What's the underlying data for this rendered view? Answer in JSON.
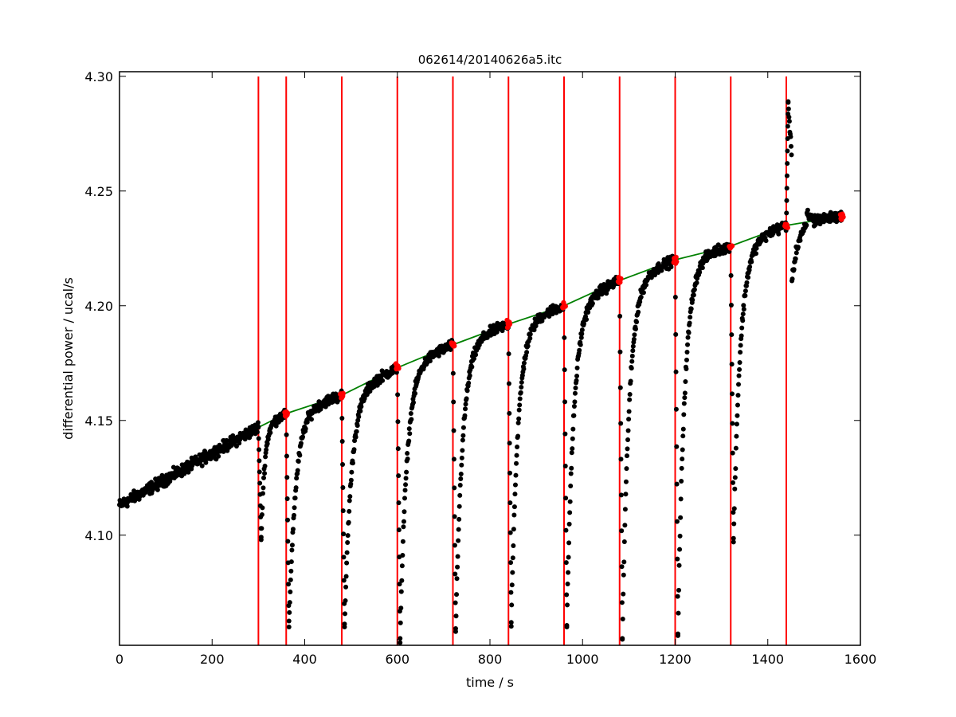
{
  "chart_data": {
    "type": "scatter",
    "title": "062614/20140626a5.itc",
    "xlabel": "time / s",
    "ylabel": "differential power / ucal/s",
    "xlim": [
      0,
      1600
    ],
    "ylim": [
      4.052,
      4.302
    ],
    "x_ticks": [
      0,
      200,
      400,
      600,
      800,
      1000,
      1200,
      1400,
      1600
    ],
    "x_tick_labels": [
      "0",
      "200",
      "400",
      "600",
      "800",
      "1000",
      "1200",
      "1400",
      "1600"
    ],
    "y_ticks": [
      4.1,
      4.15,
      4.2,
      4.25,
      4.3
    ],
    "y_tick_labels": [
      "4.10",
      "4.15",
      "4.20",
      "4.25",
      "4.30"
    ],
    "grid": false,
    "legend": "none",
    "colors": {
      "data_points": "#000000",
      "baseline_points": "#ff0000",
      "injection_lines": "#ff0000",
      "baseline_fit": "#008000"
    },
    "series": [
      {
        "kind": "injection_markers",
        "x": [
          300,
          360,
          480,
          600,
          720,
          840,
          960,
          1080,
          1200,
          1320,
          1440
        ]
      },
      {
        "kind": "baseline_fit",
        "x": [
          0,
          300,
          360,
          480,
          600,
          720,
          840,
          960,
          1080,
          1200,
          1320,
          1440,
          1560
        ],
        "y": [
          4.113,
          4.147,
          4.153,
          4.161,
          4.173,
          4.183,
          4.192,
          4.2,
          4.211,
          4.22,
          4.226,
          4.235,
          4.239
        ]
      },
      {
        "kind": "baseline_points",
        "x": [
          360,
          480,
          600,
          720,
          840,
          960,
          1080,
          1200,
          1320,
          1440,
          1560
        ],
        "y": [
          4.153,
          4.161,
          4.173,
          4.183,
          4.192,
          4.2,
          4.211,
          4.22,
          4.226,
          4.235,
          4.239
        ]
      },
      {
        "kind": "pre_injection_drift",
        "x_start": 0,
        "x_end": 300,
        "y_start": 4.113,
        "y_end": 4.147
      },
      {
        "kind": "injection_peaks",
        "peaks": [
          {
            "x0": 300,
            "x1": 360,
            "min": 4.098,
            "y_end": 4.153,
            "dir": -1
          },
          {
            "x0": 360,
            "x1": 480,
            "min": 4.06,
            "y_end": 4.161,
            "dir": -1
          },
          {
            "x0": 480,
            "x1": 600,
            "min": 4.06,
            "y_end": 4.173,
            "dir": -1
          },
          {
            "x0": 600,
            "x1": 720,
            "min": 4.055,
            "y_end": 4.183,
            "dir": -1
          },
          {
            "x0": 720,
            "x1": 840,
            "min": 4.058,
            "y_end": 4.192,
            "dir": -1
          },
          {
            "x0": 840,
            "x1": 960,
            "min": 4.062,
            "y_end": 4.2,
            "dir": -1
          },
          {
            "x0": 960,
            "x1": 1080,
            "min": 4.06,
            "y_end": 4.211,
            "dir": -1
          },
          {
            "x0": 1080,
            "x1": 1200,
            "min": 4.055,
            "y_end": 4.22,
            "dir": -1
          },
          {
            "x0": 1200,
            "x1": 1320,
            "min": 4.057,
            "y_end": 4.226,
            "dir": -1
          },
          {
            "x0": 1320,
            "x1": 1440,
            "min": 4.097,
            "y_end": 4.235,
            "dir": -1
          },
          {
            "x0": 1440,
            "x1": 1560,
            "min": 4.209,
            "max": 4.289,
            "y_end": 4.239,
            "dir": 1
          }
        ]
      }
    ]
  }
}
